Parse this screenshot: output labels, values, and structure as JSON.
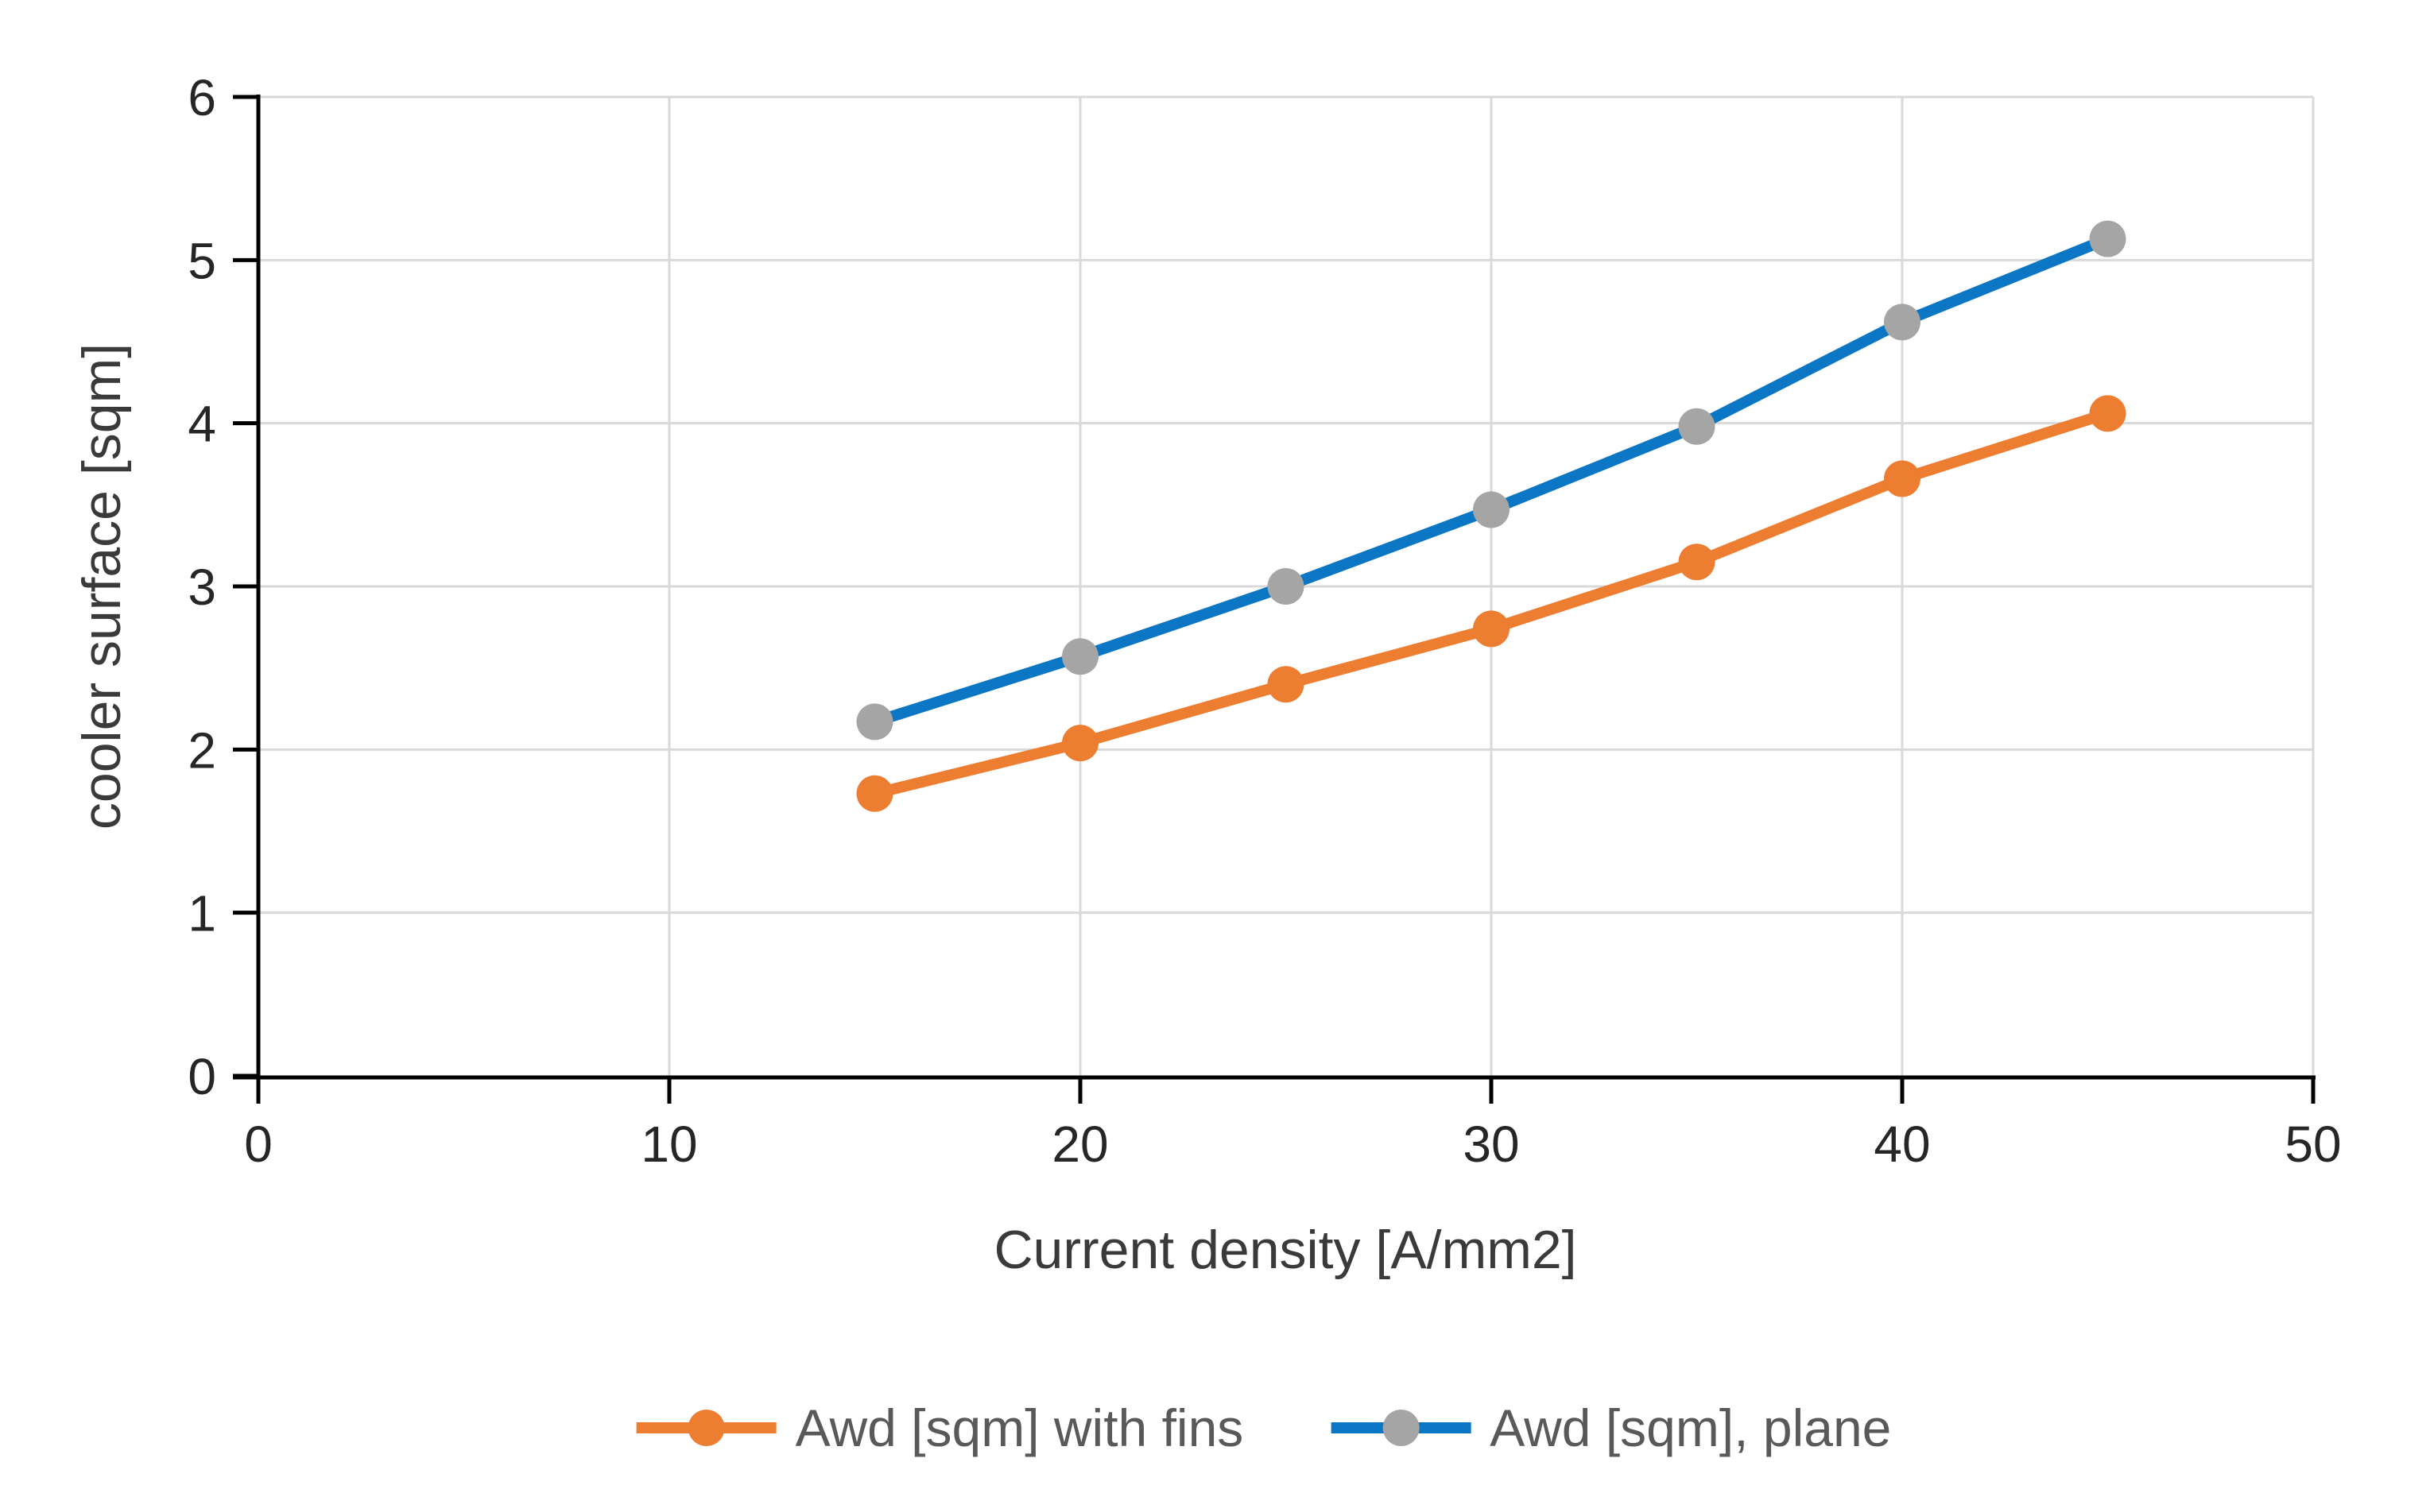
{
  "chart_data": {
    "type": "line",
    "title": "",
    "xlabel": "Current density [A/mm2]",
    "ylabel": "cooler surface [sqm]",
    "x": [
      15,
      20,
      25,
      30,
      35,
      40,
      45
    ],
    "series": [
      {
        "name": "Awd [sqm] with fins",
        "line_color": "#ED7D31",
        "marker_color": "#ED7D31",
        "values": [
          1.73,
          2.04,
          2.4,
          2.74,
          3.15,
          3.66,
          4.06
        ]
      },
      {
        "name": "Awd [sqm], plane",
        "line_color": "#0B76C4",
        "marker_color": "#A5A5A5",
        "values": [
          2.17,
          2.57,
          3.0,
          3.47,
          3.98,
          4.62,
          5.13
        ]
      }
    ],
    "xlim": [
      0,
      50
    ],
    "ylim": [
      0,
      6
    ],
    "xticks": [
      0,
      10,
      20,
      30,
      40,
      50
    ],
    "yticks": [
      0,
      1,
      2,
      3,
      4,
      5,
      6
    ],
    "grid": true,
    "legend_position": "bottom",
    "background": "#FFFFFF",
    "axis_color": "#000000",
    "gridline_color": "#D9D9D9",
    "tick_label_color": "#262626",
    "axis_title_color": "#3A3A3A",
    "legend_text_color": "#595959"
  }
}
